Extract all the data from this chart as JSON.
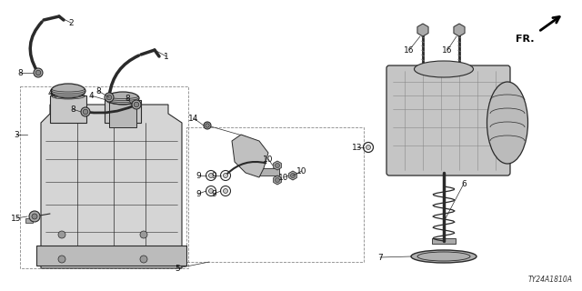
{
  "bg_color": "#ffffff",
  "part_code": "TY24A1810A",
  "line_color": "#2a2a2a",
  "gray_fill": "#c8c8c8",
  "light_gray": "#e0e0e0",
  "dark_gray": "#444444",
  "label_fs": 6.5,
  "note_fs": 5.5,
  "fr_text": "FR.",
  "labels": [
    [
      "1",
      155,
      68,
      183,
      75
    ],
    [
      "2",
      75,
      28,
      55,
      28
    ],
    [
      "3",
      18,
      148,
      30,
      148
    ],
    [
      "4",
      62,
      108,
      72,
      113
    ],
    [
      "4",
      105,
      108,
      98,
      113
    ],
    [
      "5",
      195,
      238,
      230,
      238
    ],
    [
      "6",
      490,
      200,
      445,
      195
    ],
    [
      "7",
      420,
      268,
      430,
      278
    ],
    [
      "8",
      27,
      80,
      42,
      80
    ],
    [
      "8",
      107,
      100,
      120,
      107
    ],
    [
      "8",
      82,
      118,
      94,
      123
    ],
    [
      "8",
      138,
      108,
      150,
      115
    ],
    [
      "9",
      220,
      188,
      232,
      193
    ],
    [
      "9",
      238,
      188,
      248,
      193
    ],
    [
      "9",
      220,
      215,
      232,
      210
    ],
    [
      "9",
      238,
      215,
      248,
      210
    ],
    [
      "10",
      293,
      178,
      302,
      182
    ],
    [
      "10",
      295,
      200,
      305,
      198
    ],
    [
      "10",
      333,
      190,
      322,
      193
    ],
    [
      "13",
      393,
      160,
      405,
      162
    ],
    [
      "14",
      215,
      130,
      228,
      138
    ],
    [
      "15",
      22,
      238,
      40,
      232
    ],
    [
      "16",
      455,
      58,
      465,
      75
    ],
    [
      "16",
      495,
      58,
      505,
      75
    ]
  ]
}
